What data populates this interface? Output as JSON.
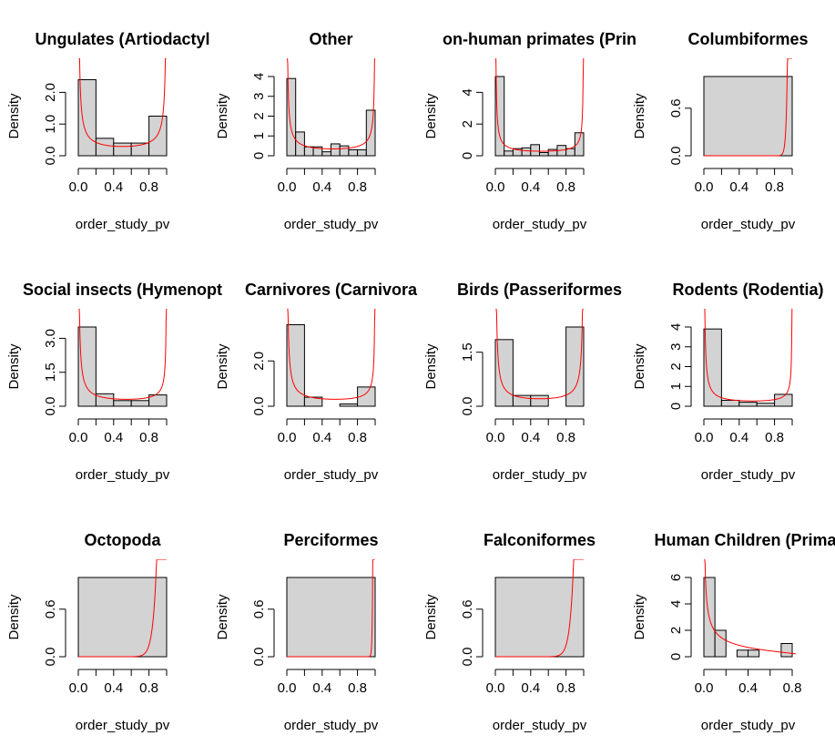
{
  "chart_data": [
    {
      "type": "histogram",
      "title": "Ungulates (Artiodactyl",
      "xlabel": "order_study_pv",
      "ylabel": "Density",
      "xlim": [
        0,
        1
      ],
      "ylim": [
        0,
        2.5
      ],
      "xticks": [
        "0.0",
        "0.4",
        "0.8"
      ],
      "yticks": [
        "0.0",
        "1.0",
        "2.0"
      ],
      "bins": [
        0,
        0.2,
        0.4,
        0.6,
        0.8,
        1.0
      ],
      "values": [
        2.4,
        0.55,
        0.4,
        0.4,
        1.25
      ],
      "fit_curve": "beta",
      "alpha": 0.18,
      "beta": 0.18
    },
    {
      "type": "histogram",
      "title": "Other",
      "xlabel": "order_study_pv",
      "ylabel": "Density",
      "xlim": [
        0,
        1
      ],
      "ylim": [
        0,
        4
      ],
      "xticks": [
        "0.0",
        "0.4",
        "0.8"
      ],
      "yticks": [
        "0",
        "1",
        "2",
        "3",
        "4"
      ],
      "bins": [
        0,
        0.1,
        0.2,
        0.3,
        0.4,
        0.5,
        0.6,
        0.7,
        0.8,
        0.9,
        1.0
      ],
      "values": [
        3.9,
        1.2,
        0.45,
        0.45,
        0.2,
        0.6,
        0.5,
        0.3,
        0.3,
        2.3
      ],
      "fit_curve": "beta",
      "alpha": 0.2,
      "beta": 0.25
    },
    {
      "type": "histogram",
      "title": "on-human primates (Prin",
      "xlabel": "order_study_pv",
      "ylabel": "Density",
      "xlim": [
        0,
        1
      ],
      "ylim": [
        0,
        5
      ],
      "xticks": [
        "0.0",
        "0.4",
        "0.8"
      ],
      "yticks": [
        "0",
        "2",
        "4"
      ],
      "bins": [
        0,
        0.1,
        0.2,
        0.3,
        0.4,
        0.5,
        0.6,
        0.7,
        0.8,
        0.9,
        1.0
      ],
      "values": [
        5.0,
        0.3,
        0.45,
        0.5,
        0.7,
        0.2,
        0.4,
        0.65,
        0.45,
        1.45
      ],
      "fit_curve": "beta",
      "alpha": 0.15,
      "beta": 0.22
    },
    {
      "type": "histogram",
      "title": "Columbiformes",
      "xlabel": "order_study_pv",
      "ylabel": "Density",
      "xlim": [
        0,
        1
      ],
      "ylim": [
        0,
        1
      ],
      "xticks": [
        "0.0",
        "0.4",
        "0.8"
      ],
      "yticks": [
        "0.0",
        "0.6"
      ],
      "bins": [
        0,
        1.0
      ],
      "values": [
        1.0
      ],
      "fit_curve": "beta",
      "alpha": 60,
      "beta": 0.7
    },
    {
      "type": "histogram",
      "title": "Social insects (Hymenopt",
      "xlabel": "order_study_pv",
      "ylabel": "Density",
      "xlim": [
        0,
        1
      ],
      "ylim": [
        0,
        3.5
      ],
      "xticks": [
        "0.0",
        "0.4",
        "0.8"
      ],
      "yticks": [
        "0.0",
        "1.5",
        "3.0"
      ],
      "bins": [
        0,
        0.2,
        0.4,
        0.6,
        0.8,
        1.0
      ],
      "values": [
        3.5,
        0.55,
        0.25,
        0.25,
        0.5
      ],
      "fit_curve": "beta",
      "alpha": 0.15,
      "beta": 0.3
    },
    {
      "type": "histogram",
      "title": "Carnivores (Carnivora",
      "xlabel": "order_study_pv",
      "ylabel": "Density",
      "xlim": [
        0,
        1
      ],
      "ylim": [
        0,
        3.5
      ],
      "xticks": [
        "0.0",
        "0.4",
        "0.8"
      ],
      "yticks": [
        "0.0",
        "2.0"
      ],
      "bins": [
        0,
        0.2,
        0.4,
        0.6,
        0.8,
        1.0
      ],
      "values": [
        3.6,
        0.4,
        0.0,
        0.1,
        0.85
      ],
      "fit_curve": "beta",
      "alpha": 0.15,
      "beta": 0.3
    },
    {
      "type": "histogram",
      "title": "Birds (Passeriformes",
      "xlabel": "order_study_pv",
      "ylabel": "Density",
      "xlim": [
        0,
        1
      ],
      "ylim": [
        0,
        2.2
      ],
      "xticks": [
        "0.0",
        "0.4",
        "0.8"
      ],
      "yticks": [
        "0.0",
        "1.5"
      ],
      "bins": [
        0,
        0.2,
        0.4,
        0.6,
        0.8,
        1.0
      ],
      "values": [
        1.85,
        0.3,
        0.3,
        0.0,
        2.2
      ],
      "fit_curve": "beta",
      "alpha": 0.12,
      "beta": 0.12
    },
    {
      "type": "histogram",
      "title": "Rodents (Rodentia)",
      "xlabel": "order_study_pv",
      "ylabel": "Density",
      "xlim": [
        0,
        1
      ],
      "ylim": [
        0,
        4
      ],
      "xticks": [
        "0.0",
        "0.4",
        "0.8"
      ],
      "yticks": [
        "0",
        "1",
        "2",
        "3",
        "4"
      ],
      "bins": [
        0,
        0.2,
        0.4,
        0.6,
        0.8,
        1.0
      ],
      "values": [
        3.9,
        0.3,
        0.2,
        0.15,
        0.6
      ],
      "fit_curve": "beta",
      "alpha": 0.12,
      "beta": 0.3
    },
    {
      "type": "histogram",
      "title": "Octopoda",
      "xlabel": "order_study_pv",
      "ylabel": "Density",
      "xlim": [
        0,
        1
      ],
      "ylim": [
        0,
        1
      ],
      "xticks": [
        "0.0",
        "0.4",
        "0.8"
      ],
      "yticks": [
        "0.0",
        "0.6"
      ],
      "bins": [
        0,
        1.0
      ],
      "values": [
        1.0
      ],
      "fit_curve": "beta",
      "alpha": 20,
      "beta": 0.7
    },
    {
      "type": "histogram",
      "title": "Perciformes",
      "xlabel": "order_study_pv",
      "ylabel": "Density",
      "xlim": [
        0,
        1
      ],
      "ylim": [
        0,
        1
      ],
      "xticks": [
        "0.0",
        "0.4",
        "0.8"
      ],
      "yticks": [
        "0.0",
        "0.6"
      ],
      "bins": [
        0,
        1.0
      ],
      "values": [
        1.0
      ],
      "fit_curve": "beta",
      "alpha": 150,
      "beta": 0.7
    },
    {
      "type": "histogram",
      "title": "Falconiformes",
      "xlabel": "order_study_pv",
      "ylabel": "Density",
      "xlim": [
        0,
        1
      ],
      "ylim": [
        0,
        1
      ],
      "xticks": [
        "0.0",
        "0.4",
        "0.8"
      ],
      "yticks": [
        "0.0",
        "0.6"
      ],
      "bins": [
        0,
        1.0
      ],
      "values": [
        1.0
      ],
      "fit_curve": "beta",
      "alpha": 20,
      "beta": 0.7
    },
    {
      "type": "histogram",
      "title": "Human Children (Primat",
      "xlabel": "order_study_pv",
      "ylabel": "Density",
      "xlim": [
        0,
        0.8
      ],
      "ylim": [
        0,
        6
      ],
      "xticks": [
        "0.0",
        "0.4",
        "0.8"
      ],
      "yticks": [
        "0",
        "2",
        "4",
        "6"
      ],
      "bins": [
        0,
        0.1,
        0.2,
        0.3,
        0.4,
        0.5,
        0.6,
        0.7,
        0.8
      ],
      "values": [
        6.0,
        2.0,
        0.0,
        0.5,
        0.5,
        0.0,
        0.0,
        1.0
      ],
      "fit_curve": "beta",
      "alpha": 0.45,
      "beta": 1.6
    }
  ],
  "colors": {
    "bar_fill": "#d3d3d3",
    "bar_stroke": "#000000",
    "curve": "#ff0000",
    "text": "#000000"
  }
}
